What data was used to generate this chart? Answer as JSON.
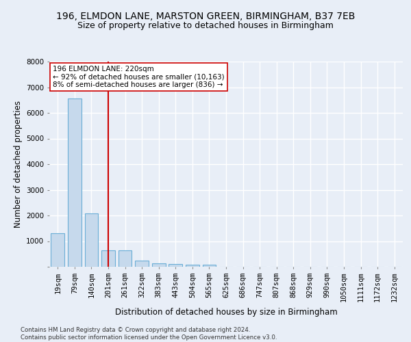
{
  "title_line1": "196, ELMDON LANE, MARSTON GREEN, BIRMINGHAM, B37 7EB",
  "title_line2": "Size of property relative to detached houses in Birmingham",
  "xlabel": "Distribution of detached houses by size in Birmingham",
  "ylabel": "Number of detached properties",
  "footnote": "Contains HM Land Registry data © Crown copyright and database right 2024.\nContains public sector information licensed under the Open Government Licence v3.0.",
  "bar_labels": [
    "19sqm",
    "79sqm",
    "140sqm",
    "201sqm",
    "261sqm",
    "322sqm",
    "383sqm",
    "443sqm",
    "504sqm",
    "565sqm",
    "625sqm",
    "686sqm",
    "747sqm",
    "807sqm",
    "868sqm",
    "929sqm",
    "990sqm",
    "1050sqm",
    "1111sqm",
    "1172sqm",
    "1232sqm"
  ],
  "bar_values": [
    1300,
    6550,
    2080,
    650,
    630,
    250,
    130,
    110,
    75,
    75,
    0,
    0,
    0,
    0,
    0,
    0,
    0,
    0,
    0,
    0,
    0
  ],
  "bar_color": "#c6d9ec",
  "bar_edgecolor": "#6aaed6",
  "vline_x": 3.0,
  "vline_color": "#cc0000",
  "annotation_text": "196 ELMDON LANE: 220sqm\n← 92% of detached houses are smaller (10,163)\n8% of semi-detached houses are larger (836) →",
  "annotation_box_color": "#ffffff",
  "annotation_box_edgecolor": "#cc0000",
  "ylim": [
    0,
    8000
  ],
  "yticks": [
    0,
    1000,
    2000,
    3000,
    4000,
    5000,
    6000,
    7000,
    8000
  ],
  "bg_color": "#e8eef7",
  "plot_bg_color": "#e8eef7",
  "grid_color": "#ffffff",
  "title_fontsize": 10,
  "subtitle_fontsize": 9,
  "axis_label_fontsize": 8.5,
  "tick_fontsize": 7.5,
  "annot_fontsize": 7.5
}
